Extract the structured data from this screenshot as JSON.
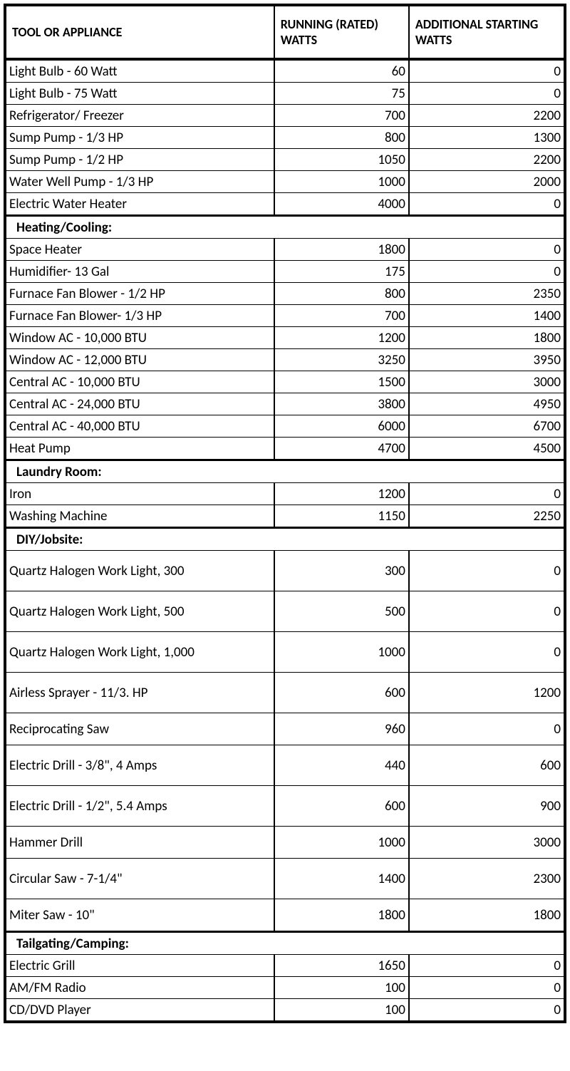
{
  "columns": [
    "TOOL OR APPLIANCE",
    "RUNNING (RATED) WATTS",
    "ADDITIONAL STARTING WATTS"
  ],
  "rows": [
    {
      "type": "data",
      "name": "Light Bulb - 60 Watt",
      "running": "60",
      "starting": "0"
    },
    {
      "type": "data",
      "name": "Light Bulb - 75 Watt",
      "running": "75",
      "starting": "0"
    },
    {
      "type": "data",
      "name": "Refrigerator/ Freezer",
      "running": "700",
      "starting": "2200"
    },
    {
      "type": "data",
      "name": "Sump Pump - 1/3 HP",
      "running": "800",
      "starting": "1300"
    },
    {
      "type": "data",
      "name": "Sump Pump - 1/2 HP",
      "running": "1050",
      "starting": "2200"
    },
    {
      "type": "data",
      "name": "Water Well Pump - 1/3 HP",
      "running": "1000",
      "starting": "2000"
    },
    {
      "type": "data",
      "name": "Electric Water Heater",
      "running": "4000",
      "starting": "0"
    },
    {
      "type": "section",
      "name": "Heating/Cooling:"
    },
    {
      "type": "data",
      "name": "Space Heater",
      "running": "1800",
      "starting": "0"
    },
    {
      "type": "data",
      "name": "Humidifier- 13 Gal",
      "running": "175",
      "starting": "0"
    },
    {
      "type": "data",
      "name": "Furnace Fan Blower - 1/2 HP",
      "running": "800",
      "starting": "2350"
    },
    {
      "type": "data",
      "name": "Furnace Fan Blower- 1/3 HP",
      "running": "700",
      "starting": "1400"
    },
    {
      "type": "data",
      "name": "Window AC - 10,000 BTU",
      "running": "1200",
      "starting": "1800"
    },
    {
      "type": "data",
      "name": "Window AC - 12,000 BTU",
      "running": "3250",
      "starting": "3950"
    },
    {
      "type": "data",
      "name": "Central AC - 10,000 BTU",
      "running": "1500",
      "starting": "3000"
    },
    {
      "type": "data",
      "name": "Central AC - 24,000 BTU",
      "running": "3800",
      "starting": "4950"
    },
    {
      "type": "data",
      "name": "Central AC - 40,000 BTU",
      "running": "6000",
      "starting": "6700"
    },
    {
      "type": "data",
      "name": "Heat Pump",
      "running": "4700",
      "starting": "4500"
    },
    {
      "type": "section",
      "name": "Laundry Room:"
    },
    {
      "type": "data",
      "name": "Iron",
      "running": "1200",
      "starting": "0"
    },
    {
      "type": "data",
      "name": "Washing Machine",
      "running": "1150",
      "starting": "2250"
    },
    {
      "type": "section",
      "name": "DIY/Jobsite:"
    },
    {
      "type": "data",
      "rowh": "tall",
      "name": "Quartz Halogen Work Light, 300",
      "running": "300",
      "starting": "0"
    },
    {
      "type": "data",
      "rowh": "tall",
      "name": "Quartz Halogen Work Light, 500",
      "running": "500",
      "starting": "0"
    },
    {
      "type": "data",
      "rowh": "tall",
      "name": "Quartz Halogen Work Light, 1,000",
      "running": "1000",
      "starting": "0"
    },
    {
      "type": "data",
      "rowh": "tall",
      "name": "Airless Sprayer - 11/3. HP",
      "running": "600",
      "starting": "1200"
    },
    {
      "type": "data",
      "rowh": "med",
      "name": "Reciprocating Saw",
      "running": "960",
      "starting": "0"
    },
    {
      "type": "data",
      "rowh": "tall",
      "name": "Electric Drill - 3/8\", 4 Amps",
      "running": "440",
      "starting": "600"
    },
    {
      "type": "data",
      "rowh": "tall",
      "name": "Electric Drill - 1/2\", 5.4 Amps",
      "running": "600",
      "starting": "900"
    },
    {
      "type": "data",
      "rowh": "med",
      "name": "Hammer Drill",
      "running": "1000",
      "starting": "3000"
    },
    {
      "type": "data",
      "rowh": "tall",
      "name": "Circular Saw - 7-1/4\"",
      "running": "1400",
      "starting": "2300"
    },
    {
      "type": "data",
      "rowh": "med",
      "name": "Miter Saw - 10\"",
      "running": "1800",
      "starting": "1800"
    },
    {
      "type": "section",
      "name": "Tailgating/Camping:"
    },
    {
      "type": "data",
      "name": "Electric Grill",
      "running": "1650",
      "starting": "0"
    },
    {
      "type": "data",
      "name": "AM/FM Radio",
      "running": "100",
      "starting": "0"
    },
    {
      "type": "data",
      "name": "CD/DVD Player",
      "running": "100",
      "starting": "0"
    }
  ]
}
